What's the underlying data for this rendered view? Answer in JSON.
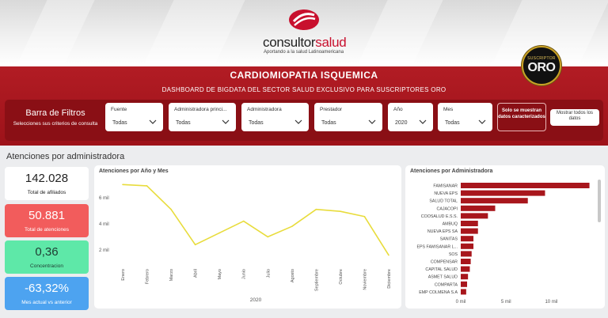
{
  "header": {
    "brand_part1": "consultor",
    "brand_part2": "salud",
    "tagline": "Aportando a la salud Latinoamericana",
    "title": "CARDIOMIOPATIA ISQUEMICA",
    "subtitle": "DASHBOARD DE BIGDATA DEL SECTOR SALUD EXCLUSIVO PARA SUSCRIPTORES ORO",
    "badge_small": "SUSCRIPTOR",
    "badge_big": "ORO"
  },
  "filter_bar": {
    "title": "Barra de Filtros",
    "subtitle": "Selecciones sus criterios de consulta",
    "filters": [
      {
        "label": "Fuente",
        "value": "Todas"
      },
      {
        "label": "Administradora princi...",
        "value": "Todas"
      },
      {
        "label": "Administradora",
        "value": "Todas"
      },
      {
        "label": "Prestador",
        "value": "Todas"
      },
      {
        "label": "Año",
        "value": "2020"
      },
      {
        "label": "Mes",
        "value": "Todas"
      }
    ],
    "btn_characterized": "Solo se muestran datos caracterizados",
    "btn_all": "Mostrar todos los datos"
  },
  "section_title": "Atenciones por administradora",
  "kpis": [
    {
      "value": "142.028",
      "label": "Total de afiliados"
    },
    {
      "value": "50.881",
      "label": "Total de atenciones"
    },
    {
      "value": "0,36",
      "label": "Concentracion"
    },
    {
      "value": "-63,32%",
      "label": "Mes actual vs anterior"
    }
  ],
  "colors": {
    "banner_red": "#b21c24",
    "filter_bar": "#8a0f15",
    "kpi_red": "#f25c5c",
    "kpi_green": "#5ee8a8",
    "kpi_blue": "#4da3f0",
    "line": "#e8dc3c",
    "bar": "#a8161c",
    "gold": "#c9a227"
  },
  "icons": [
    "consultorsalud-logo",
    "chevron-down-icon"
  ],
  "chart_data": [
    {
      "type": "line",
      "title": "Atenciones por Año y Mes",
      "xlabel": "2020",
      "ylabel": "",
      "x": [
        "Enero",
        "Febrero",
        "Marzo",
        "Abril",
        "Mayo",
        "Junio",
        "Julio",
        "Agosto",
        "Septiembre",
        "Octubre",
        "Noviembre",
        "Diciembre"
      ],
      "values": [
        7000,
        6900,
        5100,
        2400,
        3300,
        4200,
        3000,
        3800,
        5100,
        4950,
        4550,
        1600
      ],
      "yticks": [
        "2 mil",
        "4 mil",
        "6 mil"
      ],
      "ylim": [
        0,
        7500
      ],
      "grid": false
    },
    {
      "type": "bar",
      "title": "Atenciones por Administradora",
      "orientation": "horizontal",
      "categories": [
        "FAMISANAR",
        "NUEVA EPS",
        "SALUD TOTAL",
        "CAJACOPI",
        "COOSALUD E.S.S.",
        "AMBUQ",
        "NUEVA EPS SA",
        "SANITAS",
        "EPS FAMISANAR L...",
        "SOS",
        "COMPENSAR",
        "CAPITAL SALUD",
        "ASMET SALUD",
        "COMPARTA",
        "EMP COLMENA S.A"
      ],
      "values": [
        14200,
        9300,
        7400,
        3800,
        3000,
        1900,
        1900,
        1400,
        1400,
        1200,
        1100,
        1000,
        800,
        700,
        600
      ],
      "xticks": [
        "0 mil",
        "5 mil",
        "10 mil"
      ],
      "xlim": [
        0,
        14500
      ],
      "grid": false
    }
  ]
}
